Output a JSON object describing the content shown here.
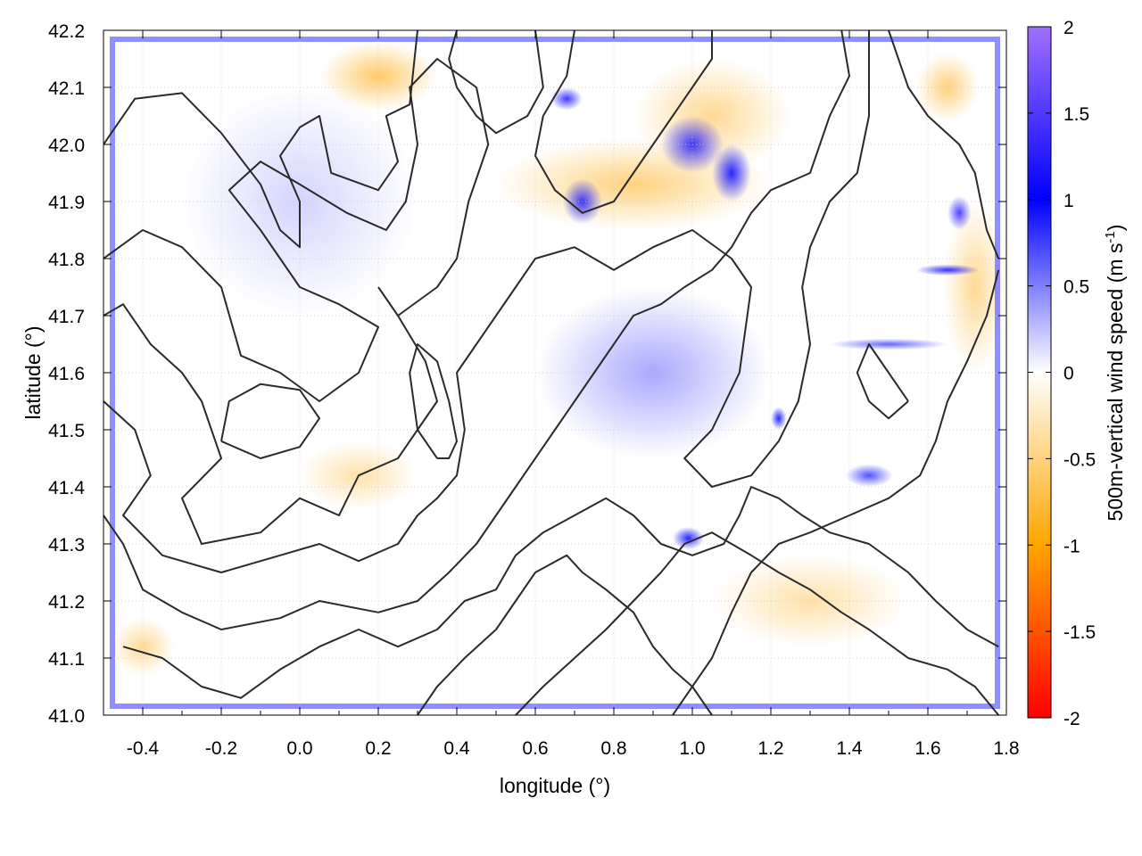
{
  "chart_data": {
    "type": "heatmap",
    "xlabel": "longitude (°)",
    "ylabel": "latitude (°)",
    "colorbar_label": "500m-vertical wind speed (m s",
    "colorbar_label_sup": "-1",
    "colorbar_label_close": ")",
    "xlim": [
      -0.5,
      1.8
    ],
    "ylim": [
      41.0,
      42.2
    ],
    "x_ticks": [
      "-0.4",
      "-0.2",
      "0.0",
      "0.2",
      "0.4",
      "0.6",
      "0.8",
      "1.0",
      "1.2",
      "1.4",
      "1.6",
      "1.8"
    ],
    "x_tick_values": [
      -0.4,
      -0.2,
      0.0,
      0.2,
      0.4,
      0.6,
      0.8,
      1.0,
      1.2,
      1.4,
      1.6,
      1.8
    ],
    "y_ticks": [
      "41.0",
      "41.1",
      "41.2",
      "41.3",
      "41.4",
      "41.5",
      "41.6",
      "41.7",
      "41.8",
      "41.9",
      "42.0",
      "42.1",
      "42.2"
    ],
    "y_tick_values": [
      41.0,
      41.1,
      41.2,
      41.3,
      41.4,
      41.5,
      41.6,
      41.7,
      41.8,
      41.9,
      42.0,
      42.1,
      42.2
    ],
    "colorbar_range": [
      -2,
      2
    ],
    "colorbar_ticks": [
      "2",
      "1.5",
      "1",
      "0.5",
      "0",
      "-0.5",
      "-1",
      "-1.5",
      "-2"
    ],
    "colorbar_tick_values": [
      2,
      1.5,
      1,
      0.5,
      0,
      -0.5,
      -1,
      -1.5,
      -2
    ],
    "colormap": [
      {
        "value": -2,
        "color": "#ff0000"
      },
      {
        "value": -1,
        "color": "#ffa500"
      },
      {
        "value": 0,
        "color": "#ffffff"
      },
      {
        "value": 1,
        "color": "#0000ff"
      },
      {
        "value": 2,
        "color": "#a070ff"
      }
    ],
    "grid": true,
    "contour_color": "#2a2a2a",
    "field_features": [
      {
        "lon": 0.2,
        "lat": 42.12,
        "value": -0.7,
        "extent": [
          0.15,
          0.06
        ]
      },
      {
        "lon": 0.85,
        "lat": 41.93,
        "value": -0.6,
        "extent": [
          0.35,
          0.08
        ]
      },
      {
        "lon": 1.05,
        "lat": 42.05,
        "value": -0.5,
        "extent": [
          0.2,
          0.1
        ]
      },
      {
        "lon": 1.65,
        "lat": 42.1,
        "value": -0.6,
        "extent": [
          0.08,
          0.06
        ]
      },
      {
        "lon": 1.72,
        "lat": 41.75,
        "value": -0.5,
        "extent": [
          0.08,
          0.15
        ]
      },
      {
        "lon": 1.3,
        "lat": 41.2,
        "value": -0.4,
        "extent": [
          0.25,
          0.08
        ]
      },
      {
        "lon": 0.15,
        "lat": 41.42,
        "value": -0.4,
        "extent": [
          0.15,
          0.06
        ]
      },
      {
        "lon": -0.4,
        "lat": 41.12,
        "value": -0.5,
        "extent": [
          0.08,
          0.05
        ]
      },
      {
        "lon": 0.72,
        "lat": 41.9,
        "value": 0.9,
        "extent": [
          0.05,
          0.04
        ]
      },
      {
        "lon": 1.0,
        "lat": 42.0,
        "value": 1.2,
        "extent": [
          0.08,
          0.05
        ]
      },
      {
        "lon": 1.1,
        "lat": 41.95,
        "value": 1.0,
        "extent": [
          0.05,
          0.05
        ]
      },
      {
        "lon": 1.22,
        "lat": 41.52,
        "value": 1.0,
        "extent": [
          0.02,
          0.02
        ]
      },
      {
        "lon": 0.99,
        "lat": 41.31,
        "value": 1.0,
        "extent": [
          0.04,
          0.02
        ]
      },
      {
        "lon": 1.65,
        "lat": 41.78,
        "value": 1.1,
        "extent": [
          0.08,
          0.01
        ]
      },
      {
        "lon": 1.5,
        "lat": 41.65,
        "value": 0.7,
        "extent": [
          0.15,
          0.01
        ]
      },
      {
        "lon": 1.68,
        "lat": 41.88,
        "value": 1.3,
        "extent": [
          0.03,
          0.03
        ]
      },
      {
        "lon": 0.68,
        "lat": 42.08,
        "value": 1.2,
        "extent": [
          0.04,
          0.02
        ]
      },
      {
        "lon": 1.45,
        "lat": 41.42,
        "value": 0.8,
        "extent": [
          0.06,
          0.02
        ]
      },
      {
        "lon": 0.9,
        "lat": 41.6,
        "value": 0.4,
        "extent": [
          0.3,
          0.15
        ]
      },
      {
        "lon": 0.0,
        "lat": 41.9,
        "value": 0.2,
        "extent": [
          0.3,
          0.2
        ]
      }
    ],
    "contours": [
      [
        [
          -0.5,
          42.0
        ],
        [
          -0.42,
          42.08
        ],
        [
          -0.3,
          42.09
        ],
        [
          -0.2,
          42.02
        ],
        [
          -0.1,
          41.93
        ],
        [
          -0.05,
          41.85
        ],
        [
          0.0,
          41.82
        ],
        [
          0.0,
          41.9
        ],
        [
          -0.05,
          41.98
        ],
        [
          0.0,
          42.03
        ],
        [
          0.05,
          42.05
        ],
        [
          0.08,
          41.95
        ],
        [
          0.2,
          41.92
        ],
        [
          0.25,
          41.97
        ],
        [
          0.22,
          42.05
        ],
        [
          0.28,
          42.07
        ],
        [
          0.3,
          42.2
        ]
      ],
      [
        [
          -0.5,
          41.8
        ],
        [
          -0.4,
          41.85
        ],
        [
          -0.3,
          41.82
        ],
        [
          -0.2,
          41.75
        ],
        [
          -0.15,
          41.63
        ],
        [
          -0.05,
          41.6
        ],
        [
          0.05,
          41.55
        ],
        [
          0.15,
          41.6
        ],
        [
          0.2,
          41.68
        ],
        [
          0.1,
          41.72
        ],
        [
          0.0,
          41.75
        ],
        [
          -0.1,
          41.85
        ],
        [
          -0.18,
          41.92
        ],
        [
          -0.1,
          41.97
        ],
        [
          0.0,
          41.93
        ],
        [
          0.12,
          41.88
        ],
        [
          0.22,
          41.85
        ],
        [
          0.27,
          41.9
        ],
        [
          0.3,
          42.0
        ],
        [
          0.28,
          42.1
        ],
        [
          0.35,
          42.15
        ],
        [
          0.45,
          42.1
        ],
        [
          0.48,
          42.0
        ],
        [
          0.43,
          41.9
        ],
        [
          0.4,
          41.8
        ],
        [
          0.35,
          41.75
        ],
        [
          0.25,
          41.7
        ]
      ],
      [
        [
          -0.5,
          41.7
        ],
        [
          -0.45,
          41.72
        ],
        [
          -0.38,
          41.65
        ],
        [
          -0.3,
          41.6
        ],
        [
          -0.25,
          41.55
        ],
        [
          -0.2,
          41.45
        ],
        [
          -0.3,
          41.38
        ],
        [
          -0.25,
          41.3
        ],
        [
          -0.1,
          41.32
        ],
        [
          0.0,
          41.38
        ],
        [
          0.1,
          41.35
        ],
        [
          0.15,
          41.42
        ],
        [
          0.25,
          41.45
        ],
        [
          0.3,
          41.5
        ],
        [
          0.35,
          41.55
        ],
        [
          0.32,
          41.62
        ],
        [
          0.25,
          41.7
        ],
        [
          0.2,
          41.75
        ]
      ],
      [
        [
          -0.5,
          41.55
        ],
        [
          -0.42,
          41.5
        ],
        [
          -0.38,
          41.42
        ],
        [
          -0.45,
          41.35
        ],
        [
          -0.35,
          41.28
        ],
        [
          -0.2,
          41.25
        ],
        [
          -0.05,
          41.28
        ],
        [
          0.05,
          41.3
        ],
        [
          0.15,
          41.27
        ],
        [
          0.25,
          41.3
        ],
        [
          0.3,
          41.35
        ],
        [
          0.35,
          41.38
        ],
        [
          0.4,
          41.42
        ],
        [
          0.42,
          41.5
        ],
        [
          0.4,
          41.6
        ],
        [
          0.45,
          41.65
        ],
        [
          0.5,
          41.7
        ],
        [
          0.55,
          41.75
        ],
        [
          0.6,
          41.8
        ],
        [
          0.7,
          41.82
        ],
        [
          0.8,
          41.78
        ],
        [
          0.9,
          41.82
        ],
        [
          1.0,
          41.85
        ],
        [
          1.1,
          41.8
        ],
        [
          1.15,
          41.75
        ],
        [
          1.12,
          41.6
        ],
        [
          1.05,
          41.5
        ],
        [
          0.98,
          41.45
        ],
        [
          1.05,
          41.4
        ],
        [
          1.15,
          41.42
        ],
        [
          1.22,
          41.48
        ],
        [
          1.27,
          41.55
        ],
        [
          1.3,
          41.65
        ],
        [
          1.28,
          41.75
        ],
        [
          1.3,
          41.82
        ],
        [
          1.35,
          41.9
        ],
        [
          1.42,
          41.95
        ],
        [
          1.45,
          42.05
        ],
        [
          1.45,
          42.2
        ]
      ],
      [
        [
          -0.5,
          41.35
        ],
        [
          -0.45,
          41.3
        ],
        [
          -0.4,
          41.22
        ],
        [
          -0.3,
          41.18
        ],
        [
          -0.2,
          41.15
        ],
        [
          -0.05,
          41.17
        ],
        [
          0.05,
          41.2
        ],
        [
          0.2,
          41.18
        ],
        [
          0.3,
          41.2
        ],
        [
          0.38,
          41.25
        ],
        [
          0.45,
          41.3
        ],
        [
          0.5,
          41.35
        ],
        [
          0.55,
          41.4
        ],
        [
          0.6,
          41.45
        ],
        [
          0.65,
          41.5
        ],
        [
          0.7,
          41.55
        ],
        [
          0.75,
          41.6
        ],
        [
          0.8,
          41.65
        ],
        [
          0.85,
          41.7
        ],
        [
          0.92,
          41.72
        ],
        [
          0.98,
          41.75
        ],
        [
          1.05,
          41.78
        ],
        [
          1.1,
          41.82
        ],
        [
          1.15,
          41.88
        ],
        [
          1.2,
          41.92
        ],
        [
          1.3,
          41.95
        ],
        [
          1.35,
          42.05
        ],
        [
          1.4,
          42.12
        ],
        [
          1.38,
          42.2
        ]
      ],
      [
        [
          -0.45,
          41.12
        ],
        [
          -0.35,
          41.1
        ],
        [
          -0.25,
          41.05
        ],
        [
          -0.15,
          41.03
        ],
        [
          -0.05,
          41.08
        ],
        [
          0.05,
          41.12
        ],
        [
          0.15,
          41.15
        ],
        [
          0.25,
          41.12
        ],
        [
          0.35,
          41.15
        ],
        [
          0.42,
          41.2
        ],
        [
          0.5,
          41.22
        ],
        [
          0.55,
          41.28
        ],
        [
          0.62,
          41.32
        ],
        [
          0.7,
          41.35
        ],
        [
          0.78,
          41.38
        ],
        [
          0.85,
          41.35
        ],
        [
          0.92,
          41.3
        ],
        [
          1.0,
          41.28
        ],
        [
          1.08,
          41.3
        ],
        [
          1.12,
          41.35
        ],
        [
          1.15,
          41.4
        ],
        [
          1.22,
          41.38
        ],
        [
          1.28,
          41.35
        ],
        [
          1.35,
          41.32
        ],
        [
          1.45,
          41.3
        ],
        [
          1.55,
          41.25
        ],
        [
          1.62,
          41.2
        ],
        [
          1.7,
          41.15
        ],
        [
          1.78,
          41.12
        ]
      ],
      [
        [
          0.3,
          41.0
        ],
        [
          0.35,
          41.05
        ],
        [
          0.42,
          41.1
        ],
        [
          0.5,
          41.15
        ],
        [
          0.55,
          41.2
        ],
        [
          0.6,
          41.25
        ],
        [
          0.68,
          41.28
        ],
        [
          0.72,
          41.25
        ],
        [
          0.78,
          41.22
        ],
        [
          0.85,
          41.18
        ],
        [
          0.9,
          41.12
        ],
        [
          0.95,
          41.08
        ],
        [
          1.0,
          41.05
        ],
        [
          1.05,
          41.0
        ]
      ],
      [
        [
          0.55,
          41.0
        ],
        [
          0.62,
          41.05
        ],
        [
          0.7,
          41.1
        ],
        [
          0.78,
          41.15
        ],
        [
          0.85,
          41.2
        ],
        [
          0.92,
          41.25
        ],
        [
          0.98,
          41.3
        ],
        [
          1.05,
          41.32
        ],
        [
          1.1,
          41.3
        ],
        [
          1.15,
          41.28
        ],
        [
          1.22,
          41.25
        ],
        [
          1.3,
          41.22
        ],
        [
          1.38,
          41.18
        ],
        [
          1.45,
          41.15
        ],
        [
          1.55,
          41.1
        ],
        [
          1.65,
          41.08
        ],
        [
          1.72,
          41.05
        ],
        [
          1.78,
          41.0
        ]
      ],
      [
        [
          0.95,
          41.0
        ],
        [
          1.0,
          41.05
        ],
        [
          1.05,
          41.1
        ],
        [
          1.1,
          41.18
        ],
        [
          1.15,
          41.25
        ],
        [
          1.22,
          41.3
        ],
        [
          1.3,
          41.32
        ],
        [
          1.4,
          41.35
        ],
        [
          1.5,
          41.38
        ],
        [
          1.58,
          41.42
        ],
        [
          1.62,
          41.48
        ],
        [
          1.65,
          41.55
        ],
        [
          1.7,
          41.62
        ],
        [
          1.75,
          41.7
        ],
        [
          1.78,
          41.78
        ]
      ],
      [
        [
          0.7,
          42.2
        ],
        [
          0.68,
          42.12
        ],
        [
          0.62,
          42.05
        ],
        [
          0.6,
          41.98
        ],
        [
          0.65,
          41.92
        ],
        [
          0.72,
          41.88
        ],
        [
          0.8,
          41.9
        ],
        [
          0.85,
          41.95
        ],
        [
          0.9,
          42.0
        ],
        [
          0.95,
          42.05
        ],
        [
          1.0,
          42.1
        ],
        [
          1.05,
          42.15
        ],
        [
          1.05,
          42.2
        ]
      ],
      [
        [
          0.6,
          42.2
        ],
        [
          0.62,
          42.1
        ],
        [
          0.58,
          42.05
        ],
        [
          0.5,
          42.02
        ],
        [
          0.45,
          42.05
        ],
        [
          0.4,
          42.1
        ],
        [
          0.38,
          42.15
        ],
        [
          0.4,
          42.2
        ]
      ],
      [
        [
          1.5,
          42.2
        ],
        [
          1.55,
          42.1
        ],
        [
          1.6,
          42.05
        ],
        [
          1.68,
          42.0
        ],
        [
          1.72,
          41.95
        ],
        [
          1.75,
          41.85
        ],
        [
          1.78,
          41.8
        ]
      ],
      [
        [
          1.55,
          41.55
        ],
        [
          1.5,
          41.6
        ],
        [
          1.45,
          41.65
        ],
        [
          1.42,
          41.6
        ],
        [
          1.45,
          41.55
        ],
        [
          1.5,
          41.52
        ],
        [
          1.55,
          41.55
        ]
      ],
      [
        [
          0.35,
          41.45
        ],
        [
          0.3,
          41.5
        ],
        [
          0.28,
          41.6
        ],
        [
          0.3,
          41.65
        ],
        [
          0.35,
          41.62
        ],
        [
          0.38,
          41.55
        ],
        [
          0.4,
          41.48
        ],
        [
          0.38,
          41.45
        ],
        [
          0.35,
          41.45
        ]
      ],
      [
        [
          -0.2,
          41.48
        ],
        [
          -0.1,
          41.45
        ],
        [
          0.0,
          41.47
        ],
        [
          0.05,
          41.52
        ],
        [
          0.0,
          41.57
        ],
        [
          -0.1,
          41.58
        ],
        [
          -0.18,
          41.55
        ],
        [
          -0.2,
          41.48
        ]
      ]
    ]
  }
}
